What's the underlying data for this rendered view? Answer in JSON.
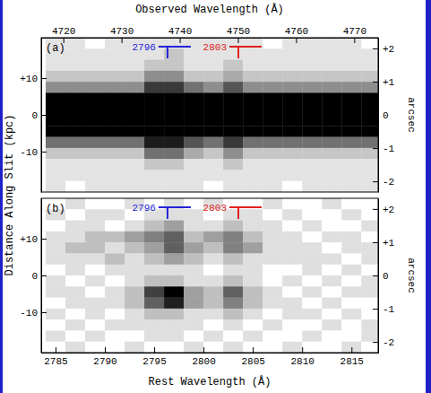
{
  "chart_data": [
    {
      "type": "heatmap",
      "title": "(a)",
      "x2label": "Observed Wavelength (Å)",
      "ylabel": "Distance Along Slit (kpc)",
      "y2label": "arcsec",
      "xlim": [
        2783.55,
        2817.7
      ],
      "x2lim": [
        4716.2,
        4774.1
      ],
      "x2ticks": [
        4720,
        4730,
        4740,
        4750,
        4760,
        4770
      ],
      "ylim": [
        -21,
        21
      ],
      "yticks": [
        {
          "value": -10,
          "label": "-10"
        },
        0,
        {
          "value": 10,
          "label": "+10"
        }
      ],
      "y2lim": [
        -2.32,
        2.32
      ],
      "y2ticks": [
        -2,
        -1,
        0,
        {
          "value": 1,
          "label": "+1"
        },
        {
          "value": 2,
          "label": "+2"
        }
      ],
      "annotations": [
        {
          "text": "2796",
          "x": 2796.35,
          "color": "#2323d6"
        },
        {
          "text": "2803",
          "x": 2803.53,
          "color": "#e02020"
        }
      ],
      "x_bins": [
        2784,
        2786,
        2788,
        2790,
        2792,
        2794,
        2796,
        2798,
        2800,
        2802,
        2804,
        2806,
        2808,
        2810,
        2812,
        2814,
        2816,
        2818
      ],
      "y_bins": [
        21,
        18,
        15,
        12,
        9,
        6,
        3,
        0,
        -3,
        -6,
        -9,
        -12,
        -15,
        -18,
        -21
      ],
      "cells": [
        [
          1,
          1,
          0,
          1,
          1,
          1,
          1,
          1,
          1,
          1,
          1,
          0,
          1,
          1,
          1,
          1,
          0
        ],
        [
          1,
          1,
          1,
          1,
          1,
          1,
          2,
          1,
          1,
          1,
          1,
          1,
          1,
          1,
          1,
          1,
          1
        ],
        [
          1,
          1,
          1,
          1,
          1,
          2,
          2,
          1,
          1,
          2,
          1,
          1,
          1,
          1,
          1,
          1,
          1
        ],
        [
          2,
          2,
          2,
          2,
          2,
          4,
          4,
          2,
          2,
          3,
          2,
          2,
          2,
          2,
          2,
          2,
          2
        ],
        [
          4,
          4,
          4,
          4,
          4,
          7,
          7,
          5,
          4,
          6,
          4,
          4,
          4,
          4,
          4,
          4,
          4
        ],
        [
          9,
          9,
          9,
          9,
          9,
          9,
          9,
          9,
          9,
          9,
          9,
          9,
          9,
          9,
          9,
          9,
          9
        ],
        [
          9,
          9,
          9,
          9,
          9,
          9,
          9,
          9,
          9,
          9,
          9,
          9,
          9,
          9,
          9,
          9,
          9
        ],
        [
          9,
          9,
          9,
          9,
          9,
          9,
          9,
          9,
          9,
          9,
          9,
          9,
          9,
          9,
          9,
          9,
          9
        ],
        [
          9,
          9,
          9,
          9,
          9,
          9,
          9,
          9,
          9,
          9,
          9,
          9,
          9,
          9,
          9,
          9,
          9
        ],
        [
          5,
          5,
          5,
          5,
          5,
          8,
          8,
          6,
          5,
          7,
          5,
          5,
          5,
          5,
          5,
          5,
          5
        ],
        [
          2,
          2,
          2,
          2,
          2,
          5,
          5,
          3,
          2,
          4,
          2,
          2,
          2,
          2,
          2,
          2,
          2
        ],
        [
          1,
          1,
          1,
          1,
          1,
          2,
          2,
          1,
          1,
          2,
          1,
          1,
          1,
          1,
          1,
          1,
          1
        ],
        [
          1,
          1,
          1,
          1,
          1,
          1,
          1,
          1,
          1,
          1,
          1,
          1,
          1,
          1,
          1,
          1,
          1
        ],
        [
          1,
          0,
          1,
          1,
          1,
          1,
          1,
          1,
          0,
          1,
          1,
          1,
          0,
          1,
          1,
          1,
          1
        ]
      ]
    },
    {
      "type": "heatmap",
      "title": "(b)",
      "xlabel": "Rest Wavelength (Å)",
      "y2label": "arcsec",
      "xlim": [
        2783.55,
        2817.7
      ],
      "xticks": [
        2785,
        2790,
        2795,
        2800,
        2805,
        2810,
        2815
      ],
      "ylim": [
        -21,
        21
      ],
      "yticks": [
        {
          "value": -10,
          "label": "-10"
        },
        0,
        {
          "value": 10,
          "label": "+10"
        }
      ],
      "y2lim": [
        -2.32,
        2.32
      ],
      "y2ticks": [
        -2,
        -1,
        0,
        {
          "value": 1,
          "label": "+1"
        },
        {
          "value": 2,
          "label": "+2"
        }
      ],
      "annotations": [
        {
          "text": "2796",
          "x": 2796.35,
          "color": "#2323d6"
        },
        {
          "text": "2803",
          "x": 2803.53,
          "color": "#e02020"
        }
      ],
      "x_bins": [
        2784,
        2786,
        2788,
        2790,
        2792,
        2794,
        2796,
        2798,
        2800,
        2802,
        2804,
        2806,
        2808,
        2810,
        2812,
        2814,
        2816,
        2818
      ],
      "y_bins": [
        21,
        18,
        15,
        12,
        9,
        6,
        3,
        0,
        -3,
        -6,
        -9,
        -12,
        -15,
        -18,
        -21
      ],
      "cells": [
        [
          0,
          1,
          0,
          0,
          1,
          0,
          1,
          0,
          1,
          0,
          0,
          1,
          0,
          0,
          1,
          0,
          0
        ],
        [
          1,
          0,
          1,
          1,
          0,
          1,
          1,
          1,
          0,
          1,
          1,
          0,
          1,
          0,
          0,
          1,
          0
        ],
        [
          0,
          1,
          1,
          0,
          1,
          2,
          3,
          1,
          1,
          2,
          1,
          1,
          0,
          1,
          0,
          0,
          1
        ],
        [
          1,
          1,
          2,
          2,
          3,
          4,
          5,
          2,
          3,
          4,
          2,
          1,
          1,
          0,
          1,
          1,
          0
        ],
        [
          1,
          2,
          2,
          1,
          2,
          3,
          5,
          3,
          2,
          4,
          3,
          1,
          1,
          1,
          0,
          1,
          1
        ],
        [
          1,
          1,
          1,
          2,
          1,
          2,
          3,
          2,
          1,
          2,
          1,
          1,
          1,
          1,
          1,
          0,
          1
        ],
        [
          0,
          1,
          0,
          1,
          1,
          1,
          1,
          1,
          0,
          1,
          1,
          0,
          0,
          1,
          0,
          1,
          0
        ],
        [
          1,
          0,
          1,
          0,
          1,
          2,
          2,
          1,
          1,
          2,
          1,
          0,
          1,
          0,
          1,
          0,
          1
        ],
        [
          1,
          1,
          0,
          1,
          2,
          6,
          8,
          3,
          2,
          5,
          2,
          1,
          0,
          1,
          0,
          1,
          1
        ],
        [
          0,
          1,
          1,
          1,
          2,
          5,
          7,
          3,
          2,
          4,
          2,
          1,
          1,
          0,
          1,
          0,
          0
        ],
        [
          1,
          0,
          1,
          0,
          1,
          2,
          2,
          1,
          1,
          2,
          1,
          0,
          1,
          1,
          0,
          1,
          0
        ],
        [
          0,
          1,
          0,
          1,
          1,
          1,
          1,
          1,
          0,
          1,
          0,
          1,
          0,
          0,
          1,
          0,
          1
        ],
        [
          1,
          0,
          1,
          0,
          0,
          1,
          1,
          0,
          1,
          0,
          1,
          0,
          0,
          1,
          0,
          0,
          1
        ],
        [
          0,
          1,
          0,
          0,
          1,
          0,
          0,
          1,
          0,
          1,
          0,
          0,
          1,
          0,
          0,
          1,
          0
        ]
      ]
    }
  ]
}
